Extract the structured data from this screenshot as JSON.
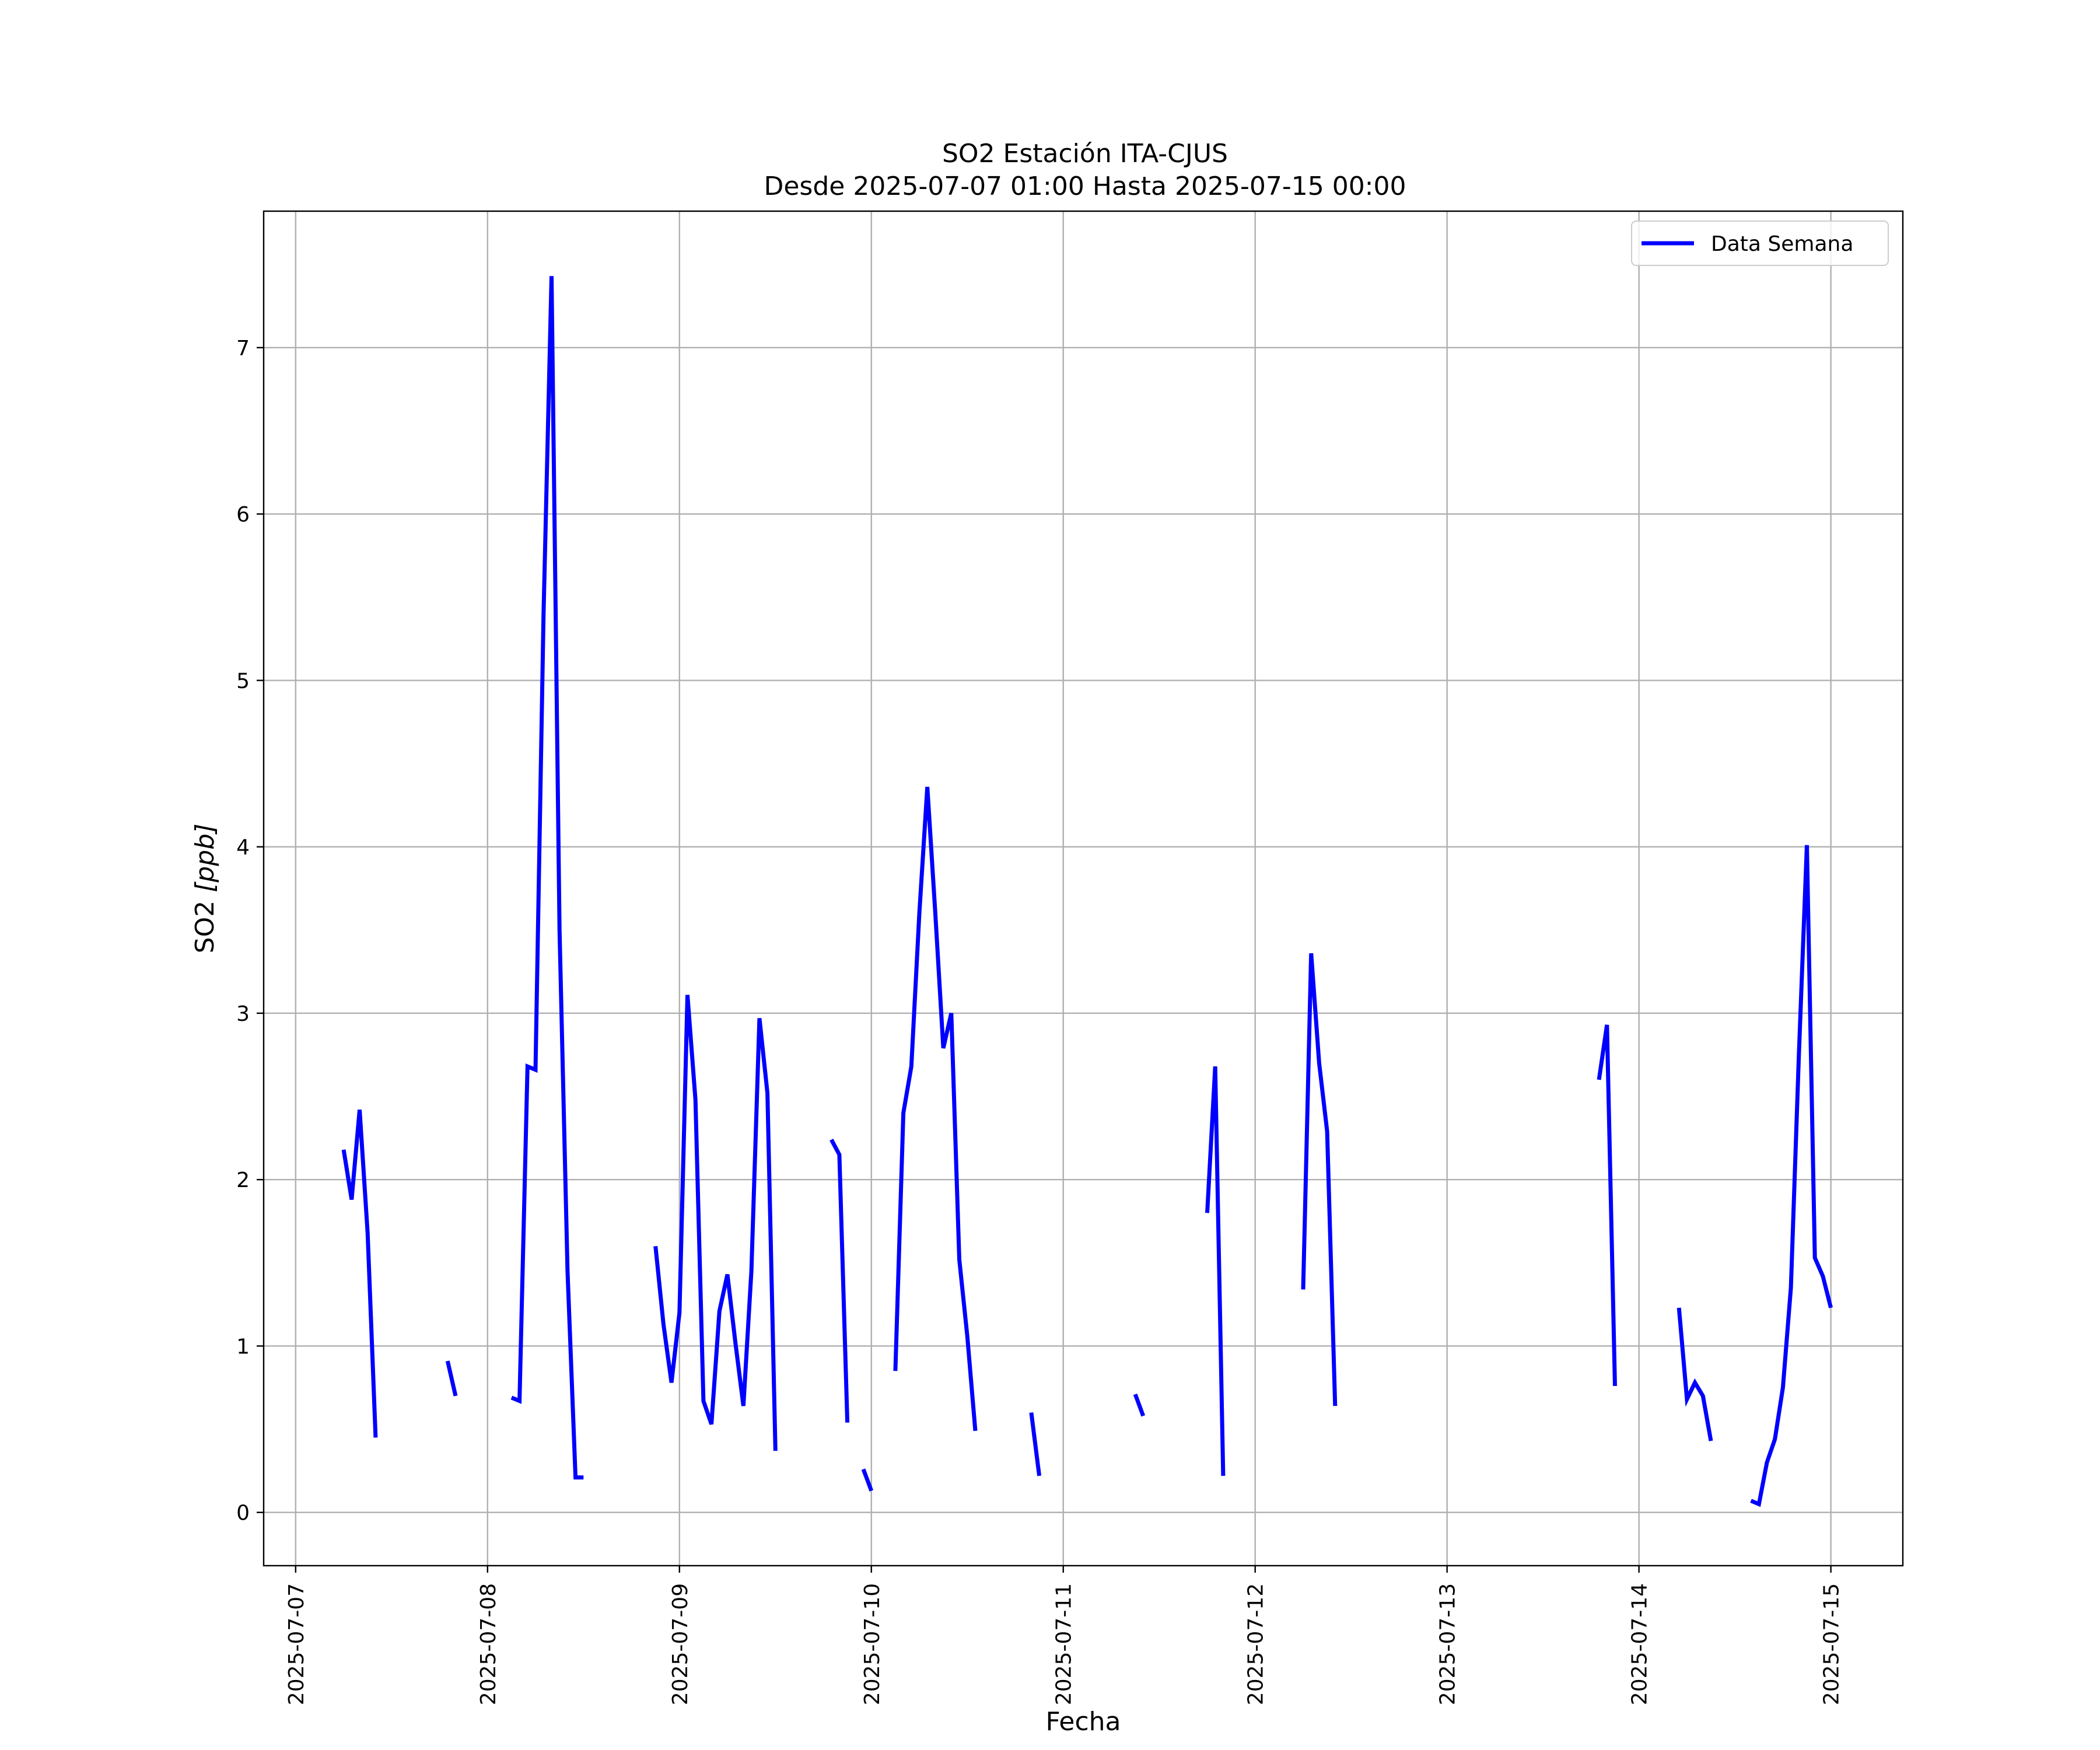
{
  "chart_data": {
    "type": "line",
    "title": "SO2 Estación ITA-CJUS",
    "subtitle": "Desde 2025-07-07 01:00 Hasta 2025-07-15 00:00",
    "xlabel": "Fecha",
    "ylabel": "SO2 [ppb]",
    "ylabel_main": "SO2 ",
    "ylabel_unit": "[ppb]",
    "xlim": [
      "2025-07-06 20:00",
      "2025-07-15 09:00"
    ],
    "ylim": [
      -0.32,
      7.82
    ],
    "x_ticks": [
      "2025-07-07",
      "2025-07-08",
      "2025-07-09",
      "2025-07-10",
      "2025-07-11",
      "2025-07-12",
      "2025-07-13",
      "2025-07-14",
      "2025-07-15"
    ],
    "y_ticks": [
      "0",
      "1",
      "2",
      "3",
      "4",
      "5",
      "6",
      "7"
    ],
    "grid": true,
    "legend_position": "top-right",
    "series": [
      {
        "name": "Data Semana",
        "color": "#0000ff",
        "segments": [
          [
            [
              "2025-07-07 06:00",
              2.18
            ],
            [
              "2025-07-07 07:00",
              1.88
            ],
            [
              "2025-07-07 08:00",
              2.42
            ],
            [
              "2025-07-07 09:00",
              1.68
            ],
            [
              "2025-07-07 10:00",
              0.45
            ]
          ],
          [
            [
              "2025-07-07 19:00",
              0.91
            ],
            [
              "2025-07-07 20:00",
              0.7
            ]
          ],
          [
            [
              "2025-07-08 03:00",
              0.69
            ],
            [
              "2025-07-08 04:00",
              0.67
            ],
            [
              "2025-07-08 05:00",
              2.68
            ],
            [
              "2025-07-08 06:00",
              2.66
            ],
            [
              "2025-07-08 07:00",
              5.4
            ],
            [
              "2025-07-08 08:00",
              7.43
            ],
            [
              "2025-07-08 09:00",
              3.5
            ],
            [
              "2025-07-08 10:00",
              1.45
            ],
            [
              "2025-07-08 11:00",
              0.21
            ],
            [
              "2025-07-08 12:00",
              0.21
            ]
          ],
          [
            [
              "2025-07-08 21:00",
              1.6
            ],
            [
              "2025-07-08 22:00",
              1.13
            ],
            [
              "2025-07-08 23:00",
              0.78
            ],
            [
              "2025-07-09 00:00",
              1.2
            ],
            [
              "2025-07-09 01:00",
              3.11
            ],
            [
              "2025-07-09 02:00",
              2.48
            ],
            [
              "2025-07-09 03:00",
              0.67
            ],
            [
              "2025-07-09 04:00",
              0.53
            ],
            [
              "2025-07-09 05:00",
              1.21
            ],
            [
              "2025-07-09 06:00",
              1.43
            ],
            [
              "2025-07-09 07:00",
              1.02
            ],
            [
              "2025-07-09 08:00",
              0.64
            ],
            [
              "2025-07-09 09:00",
              1.45
            ],
            [
              "2025-07-09 10:00",
              2.97
            ],
            [
              "2025-07-09 11:00",
              2.52
            ],
            [
              "2025-07-09 12:00",
              0.37
            ]
          ],
          [
            [
              "2025-07-09 19:00",
              2.24
            ],
            [
              "2025-07-09 20:00",
              2.15
            ],
            [
              "2025-07-09 21:00",
              0.54
            ]
          ],
          [
            [
              "2025-07-09 23:00",
              0.26
            ],
            [
              "2025-07-10 00:00",
              0.13
            ]
          ],
          [
            [
              "2025-07-10 03:00",
              0.85
            ],
            [
              "2025-07-10 04:00",
              2.4
            ],
            [
              "2025-07-10 05:00",
              2.68
            ],
            [
              "2025-07-10 06:00",
              3.6
            ],
            [
              "2025-07-10 07:00",
              4.36
            ],
            [
              "2025-07-10 08:00",
              3.6
            ],
            [
              "2025-07-10 09:00",
              2.79
            ],
            [
              "2025-07-10 10:00",
              3.0
            ],
            [
              "2025-07-10 11:00",
              1.52
            ],
            [
              "2025-07-10 12:00",
              1.06
            ],
            [
              "2025-07-10 13:00",
              0.49
            ]
          ],
          [
            [
              "2025-07-10 20:00",
              0.6
            ],
            [
              "2025-07-10 21:00",
              0.22
            ]
          ],
          [
            [
              "2025-07-11 09:00",
              0.71
            ],
            [
              "2025-07-11 10:00",
              0.58
            ]
          ],
          [
            [
              "2025-07-11 18:00",
              1.8
            ],
            [
              "2025-07-11 19:00",
              2.68
            ],
            [
              "2025-07-11 20:00",
              0.22
            ]
          ],
          [
            [
              "2025-07-12 06:00",
              1.34
            ],
            [
              "2025-07-12 07:00",
              3.36
            ],
            [
              "2025-07-12 08:00",
              2.7
            ],
            [
              "2025-07-12 09:00",
              2.29
            ],
            [
              "2025-07-12 10:00",
              0.64
            ]
          ],
          [
            [
              "2025-07-13 19:00",
              2.6
            ],
            [
              "2025-07-13 20:00",
              2.93
            ],
            [
              "2025-07-13 21:00",
              0.76
            ]
          ],
          [
            [
              "2025-07-14 05:00",
              1.23
            ],
            [
              "2025-07-14 06:00",
              0.68
            ],
            [
              "2025-07-14 07:00",
              0.78
            ],
            [
              "2025-07-14 08:00",
              0.7
            ],
            [
              "2025-07-14 09:00",
              0.43
            ]
          ],
          [
            [
              "2025-07-14 14:00",
              0.07
            ],
            [
              "2025-07-14 15:00",
              0.05
            ],
            [
              "2025-07-14 16:00",
              0.3
            ],
            [
              "2025-07-14 17:00",
              0.44
            ],
            [
              "2025-07-14 18:00",
              0.75
            ],
            [
              "2025-07-14 19:00",
              1.35
            ],
            [
              "2025-07-14 20:00",
              2.75
            ],
            [
              "2025-07-14 21:00",
              4.01
            ],
            [
              "2025-07-14 22:00",
              1.53
            ],
            [
              "2025-07-14 23:00",
              1.42
            ],
            [
              "2025-07-15 00:00",
              1.23
            ]
          ]
        ]
      }
    ]
  }
}
